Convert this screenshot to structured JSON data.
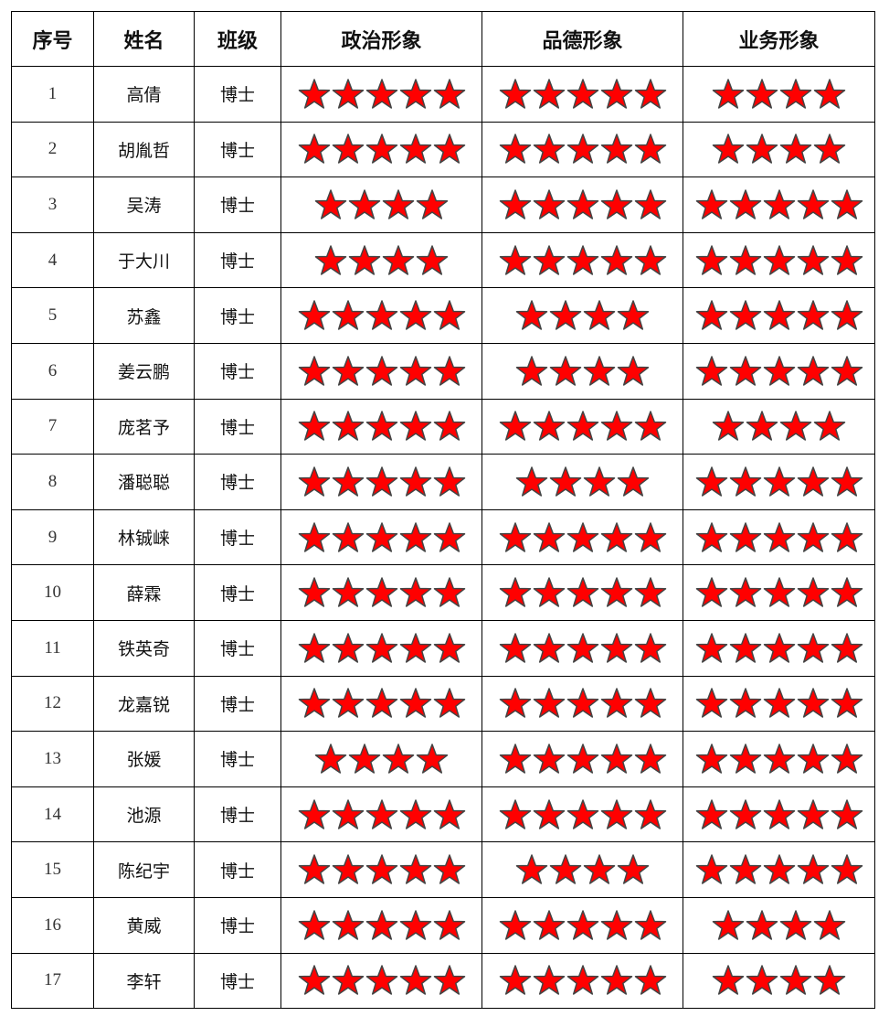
{
  "headers": [
    "序号",
    "姓名",
    "班级",
    "政治形象",
    "品德形象",
    "业务形象"
  ],
  "star_color": "#ff0000",
  "rating_max": 5,
  "rows": [
    {
      "no": "1",
      "name": "高倩",
      "class": "博士",
      "political": 5,
      "moral": 5,
      "business": 4
    },
    {
      "no": "2",
      "name": "胡胤哲",
      "class": "博士",
      "political": 5,
      "moral": 5,
      "business": 4
    },
    {
      "no": "3",
      "name": "吴涛",
      "class": "博士",
      "political": 4,
      "moral": 5,
      "business": 5
    },
    {
      "no": "4",
      "name": "于大川",
      "class": "博士",
      "political": 4,
      "moral": 5,
      "business": 5
    },
    {
      "no": "5",
      "name": "苏鑫",
      "class": "博士",
      "political": 5,
      "moral": 4,
      "business": 5
    },
    {
      "no": "6",
      "name": "姜云鹏",
      "class": "博士",
      "political": 5,
      "moral": 4,
      "business": 5
    },
    {
      "no": "7",
      "name": "庞茗予",
      "class": "博士",
      "political": 5,
      "moral": 5,
      "business": 4
    },
    {
      "no": "8",
      "name": "潘聪聪",
      "class": "博士",
      "political": 5,
      "moral": 4,
      "business": 5
    },
    {
      "no": "9",
      "name": "林铖崃",
      "class": "博士",
      "political": 5,
      "moral": 5,
      "business": 5
    },
    {
      "no": "10",
      "name": "薛霖",
      "class": "博士",
      "political": 5,
      "moral": 5,
      "business": 5
    },
    {
      "no": "11",
      "name": "铁英奇",
      "class": "博士",
      "political": 5,
      "moral": 5,
      "business": 5
    },
    {
      "no": "12",
      "name": "龙嘉锐",
      "class": "博士",
      "political": 5,
      "moral": 5,
      "business": 5
    },
    {
      "no": "13",
      "name": "张媛",
      "class": "博士",
      "political": 4,
      "moral": 5,
      "business": 5
    },
    {
      "no": "14",
      "name": "池源",
      "class": "博士",
      "political": 5,
      "moral": 5,
      "business": 5
    },
    {
      "no": "15",
      "name": "陈纪宇",
      "class": "博士",
      "political": 5,
      "moral": 4,
      "business": 5
    },
    {
      "no": "16",
      "name": "黄威",
      "class": "博士",
      "political": 5,
      "moral": 5,
      "business": 4
    },
    {
      "no": "17",
      "name": "李轩",
      "class": "博士",
      "political": 5,
      "moral": 5,
      "business": 4
    }
  ]
}
